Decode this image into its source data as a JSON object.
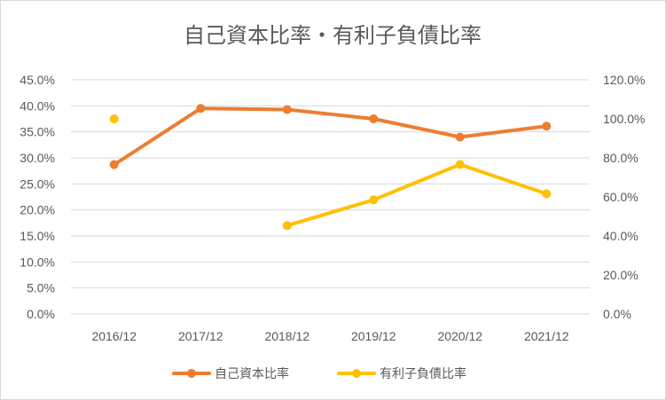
{
  "chart_data": {
    "type": "line",
    "title": "自己資本比率・有利子負債比率",
    "categories": [
      "2016/12",
      "2017/12",
      "2018/12",
      "2019/12",
      "2020/12",
      "2021/12"
    ],
    "y_left": {
      "min": 0,
      "max": 45,
      "step": 5,
      "tick_labels": [
        "0.0%",
        "5.0%",
        "10.0%",
        "15.0%",
        "20.0%",
        "25.0%",
        "30.0%",
        "35.0%",
        "40.0%",
        "45.0%"
      ]
    },
    "y_right": {
      "min": 0,
      "max": 120,
      "step": 20,
      "tick_labels": [
        "0.0%",
        "20.0%",
        "40.0%",
        "60.0%",
        "80.0%",
        "100.0%",
        "120.0%"
      ]
    },
    "grid": true,
    "legend_position": "bottom",
    "series": [
      {
        "name": "自己資本比率",
        "axis": "left",
        "color": "#ED7D31",
        "values": [
          28.7,
          39.5,
          39.3,
          37.5,
          34.0,
          36.1
        ]
      },
      {
        "name": "有利子負債比率",
        "axis": "right",
        "color": "#FFC000",
        "values": [
          100.0,
          null,
          45.3,
          58.5,
          76.6,
          61.6
        ]
      }
    ]
  }
}
